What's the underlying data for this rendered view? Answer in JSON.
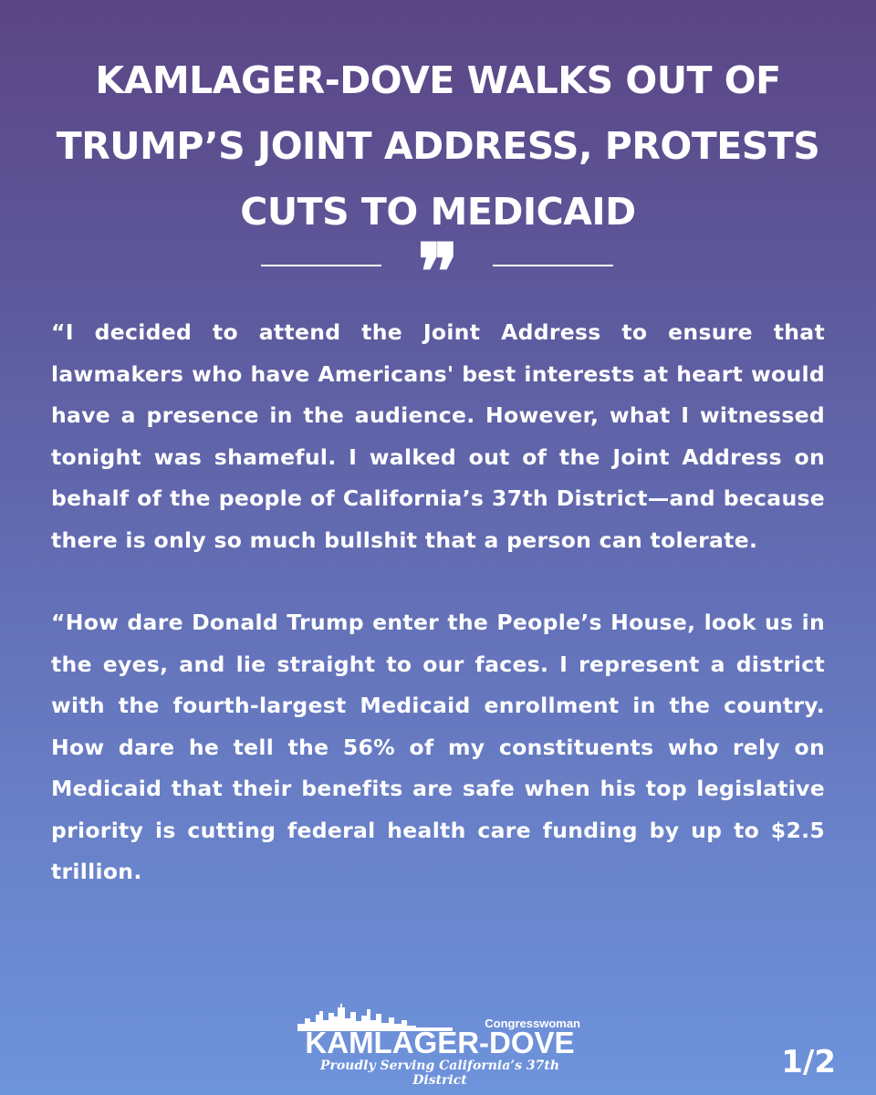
{
  "headline": "KAMLAGER-DOVE WALKS OUT OF TRUMP’S JOINT ADDRESS, PROTESTS CUTS TO MEDICAID",
  "quote_mark": "❞",
  "paragraphs": [
    "“I decided to attend the Joint Address to ensure that lawmakers who have Americans' best interests at heart would have a presence in the audience. However, what I witnessed tonight was shameful. I walked out of the Joint Address on behalf of the people of California’s 37th District—and because there is only so much bullshit that a person can tolerate.",
    "“How dare Donald Trump enter the People’s House, look us in the eyes, and lie straight to our faces. I represent a district with the fourth-largest Medicaid enrollment in the country. How dare he tell the 56% of my constituents who rely on Medicaid that their benefits are safe when his top legislative priority is cutting federal health care funding by up to $2.5 trillion."
  ],
  "logo": {
    "prefix": "Congresswoman",
    "name": "KAMLAGER-DOVE",
    "tagline": "Proudly Serving California’s 37th District",
    "skyline_icon": "city-skyline-icon"
  },
  "page_indicator": "1/2",
  "colors": {
    "gradient_top": "#5b4584",
    "gradient_bottom": "#6e94dc",
    "text": "#ffffff"
  }
}
